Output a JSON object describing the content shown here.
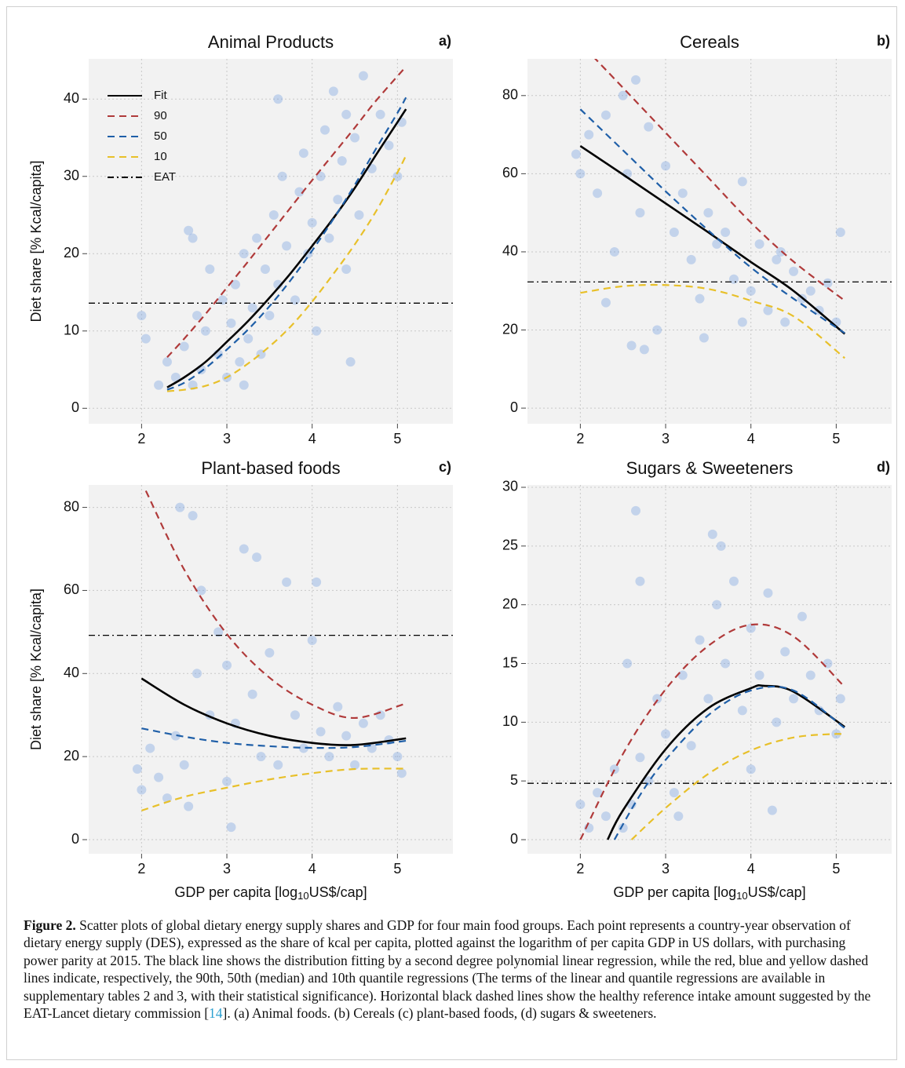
{
  "chart_data": [
    {
      "type": "scatter",
      "title": "Animal Products",
      "panel_label": "a)",
      "ylabel": "Diet share [% Kcal/capita]",
      "legend": "upper left",
      "grid": true,
      "xlim": [
        1.38,
        5.65
      ],
      "ylim": [
        -2,
        45.2
      ],
      "xticks": [
        2,
        3,
        4,
        5
      ],
      "yticks": [
        0,
        10,
        20,
        30,
        40
      ],
      "points": {
        "color": "#7ea6e0",
        "x": [
          2.0,
          2.05,
          2.2,
          2.3,
          2.4,
          2.5,
          2.55,
          2.6,
          2.65,
          2.7,
          2.75,
          2.8,
          2.9,
          2.95,
          3.0,
          3.05,
          3.1,
          3.15,
          3.2,
          3.25,
          3.3,
          3.35,
          3.4,
          3.45,
          3.5,
          3.55,
          3.6,
          3.65,
          3.7,
          3.8,
          3.85,
          3.9,
          3.95,
          4.0,
          4.05,
          4.1,
          4.15,
          4.2,
          4.25,
          4.3,
          4.35,
          4.4,
          4.45,
          4.5,
          4.55,
          4.6,
          4.7,
          4.8,
          4.9,
          5.0,
          5.05,
          4.4,
          3.6,
          2.6,
          3.2
        ],
        "y": [
          12,
          9,
          3,
          6,
          4,
          8,
          23,
          3,
          12,
          5,
          10,
          18,
          7,
          14,
          4,
          11,
          16,
          6,
          20,
          9,
          13,
          22,
          7,
          18,
          12,
          25,
          16,
          30,
          21,
          14,
          28,
          33,
          20,
          24,
          10,
          30,
          36,
          22,
          41,
          27,
          32,
          38,
          6,
          35,
          25,
          43,
          31,
          38,
          34,
          30,
          37,
          18,
          40,
          22,
          3
        ]
      },
      "series": [
        {
          "name": "Fit",
          "color": "#000000",
          "style": "solid",
          "x": [
            2.3,
            2.5,
            2.75,
            3.0,
            3.25,
            3.5,
            3.75,
            4.0,
            4.25,
            4.5,
            4.75,
            5.0,
            5.1
          ],
          "values": [
            2.7,
            4.0,
            6.0,
            8.6,
            11.3,
            14.3,
            17.5,
            21.0,
            24.6,
            28.5,
            32.8,
            37.0,
            38.7
          ]
        },
        {
          "name": "90",
          "color": "#b03a3a",
          "style": "dashed",
          "x": [
            2.3,
            2.5,
            2.75,
            3.0,
            3.25,
            3.5,
            3.75,
            4.0,
            4.25,
            4.5,
            4.75,
            5.1
          ],
          "values": [
            6.6,
            9.0,
            12.2,
            15.6,
            19.0,
            22.5,
            26.0,
            29.5,
            32.9,
            36.3,
            39.8,
            44.2
          ]
        },
        {
          "name": "50",
          "color": "#1f5fa8",
          "style": "dashed",
          "x": [
            2.3,
            2.5,
            2.75,
            3.0,
            3.25,
            3.5,
            3.75,
            4.0,
            4.25,
            4.5,
            4.75,
            5.0,
            5.1
          ],
          "values": [
            2.4,
            3.3,
            5.2,
            7.6,
            10.2,
            13.2,
            16.6,
            20.4,
            24.5,
            28.9,
            33.6,
            38.2,
            40.2
          ]
        },
        {
          "name": "10",
          "color": "#e8c02a",
          "style": "dashed",
          "x": [
            2.3,
            2.5,
            2.75,
            3.0,
            3.25,
            3.5,
            3.75,
            4.0,
            4.25,
            4.5,
            4.75,
            5.0,
            5.1
          ],
          "values": [
            2.2,
            2.4,
            2.9,
            4.0,
            5.8,
            8.0,
            10.6,
            13.8,
            17.4,
            21.2,
            25.5,
            30.5,
            32.7
          ]
        }
      ],
      "reference": {
        "name": "EAT",
        "value": 13.6,
        "color": "#000000",
        "style": "dashdot"
      }
    },
    {
      "type": "scatter",
      "title": "Cereals",
      "panel_label": "b)",
      "grid": true,
      "xlim": [
        1.38,
        5.65
      ],
      "ylim": [
        -4,
        89.4
      ],
      "xticks": [
        2,
        3,
        4,
        5
      ],
      "yticks": [
        0,
        20,
        40,
        60,
        80
      ],
      "points": {
        "color": "#7ea6e0",
        "x": [
          1.95,
          2.0,
          2.1,
          2.2,
          2.3,
          2.4,
          2.5,
          2.55,
          2.6,
          2.65,
          2.7,
          2.8,
          2.9,
          3.0,
          3.1,
          3.2,
          3.3,
          3.4,
          3.5,
          3.6,
          3.7,
          3.8,
          3.9,
          4.0,
          4.1,
          4.2,
          4.3,
          4.4,
          4.5,
          4.6,
          4.7,
          4.8,
          4.9,
          5.0,
          5.05,
          2.75,
          3.45,
          3.9,
          4.35,
          2.3
        ],
        "y": [
          65,
          60,
          70,
          55,
          75,
          40,
          80,
          60,
          16,
          84,
          50,
          72,
          20,
          62,
          45,
          55,
          38,
          28,
          50,
          42,
          45,
          33,
          58,
          30,
          42,
          25,
          38,
          22,
          35,
          28,
          30,
          25,
          32,
          22,
          45,
          15,
          18,
          22,
          40,
          27
        ]
      },
      "series": [
        {
          "color": "#000000",
          "style": "solid",
          "x": [
            2.0,
            2.5,
            3.0,
            3.5,
            4.0,
            4.5,
            5.1
          ],
          "values": [
            67.1,
            59.8,
            52.4,
            45.0,
            37.4,
            30.0,
            19.0
          ]
        },
        {
          "color": "#b03a3a",
          "style": "dashed",
          "x": [
            2.15,
            2.5,
            3.0,
            3.5,
            4.0,
            4.5,
            5.1
          ],
          "values": [
            90,
            82,
            70.5,
            59,
            47.5,
            37.5,
            27.5
          ]
        },
        {
          "color": "#1f5fa8",
          "style": "dashed",
          "x": [
            2.0,
            2.5,
            3.0,
            3.5,
            4.0,
            4.5,
            5.1
          ],
          "values": [
            76.5,
            66,
            55.5,
            45.5,
            36,
            28,
            19.2
          ]
        },
        {
          "color": "#e8c02a",
          "style": "dashed",
          "x": [
            2.0,
            2.5,
            3.0,
            3.5,
            4.0,
            4.5,
            5.1
          ],
          "values": [
            29.5,
            31.2,
            31.5,
            30.5,
            27.5,
            23.5,
            12.8
          ]
        }
      ],
      "reference": {
        "value": 32.3,
        "color": "#000000",
        "style": "dashdot"
      }
    },
    {
      "type": "scatter",
      "title": "Plant-based foods",
      "panel_label": "c)",
      "ylabel": "Diet share [% Kcal/capita]",
      "xlabel": [
        "GDP per capita [log",
        "10",
        "US$/cap]"
      ],
      "grid": true,
      "xlim": [
        1.38,
        5.65
      ],
      "ylim": [
        -3.4,
        85.4
      ],
      "xticks": [
        2,
        3,
        4,
        5
      ],
      "yticks": [
        0,
        20,
        40,
        60,
        80
      ],
      "points": {
        "color": "#7ea6e0",
        "x": [
          1.95,
          2.0,
          2.1,
          2.2,
          2.3,
          2.4,
          2.45,
          2.5,
          2.6,
          2.65,
          2.7,
          2.8,
          2.9,
          3.0,
          3.05,
          3.1,
          3.2,
          3.3,
          3.4,
          3.5,
          3.6,
          3.7,
          3.8,
          3.9,
          4.0,
          4.1,
          4.2,
          4.3,
          4.4,
          4.5,
          4.6,
          4.7,
          4.8,
          4.9,
          5.0,
          5.05,
          2.55,
          3.0,
          3.35,
          4.05
        ],
        "y": [
          17,
          12,
          22,
          15,
          10,
          25,
          80,
          18,
          78,
          40,
          60,
          30,
          50,
          14,
          3,
          28,
          70,
          35,
          20,
          45,
          18,
          62,
          30,
          22,
          48,
          26,
          20,
          32,
          25,
          18,
          28,
          22,
          30,
          24,
          20,
          16,
          8,
          42,
          68,
          62
        ]
      },
      "series": [
        {
          "color": "#000000",
          "style": "solid",
          "x": [
            2.0,
            2.5,
            3.0,
            3.5,
            4.0,
            4.5,
            5.1
          ],
          "values": [
            38.8,
            32.5,
            28,
            25,
            23.3,
            22.8,
            24.4
          ]
        },
        {
          "color": "#b03a3a",
          "style": "dashed",
          "x": [
            2.05,
            2.5,
            3.0,
            3.5,
            4.0,
            4.5,
            5.1
          ],
          "values": [
            84,
            65,
            49.5,
            39,
            32.5,
            29.3,
            32.8
          ]
        },
        {
          "color": "#1f5fa8",
          "style": "dashed",
          "x": [
            2.0,
            2.5,
            3.0,
            3.5,
            4.0,
            4.5,
            5.1
          ],
          "values": [
            26.8,
            24.8,
            23.3,
            22.5,
            22.1,
            22.3,
            23.8
          ]
        },
        {
          "color": "#e8c02a",
          "style": "dashed",
          "x": [
            2.0,
            2.5,
            3.0,
            3.5,
            4.0,
            4.5,
            5.1
          ],
          "values": [
            7,
            10.3,
            12.5,
            14.5,
            16,
            17,
            17.1
          ]
        }
      ],
      "reference": {
        "value": 49.2,
        "color": "#000000",
        "style": "dashdot"
      }
    },
    {
      "type": "scatter",
      "title": "Sugars & Sweeteners",
      "panel_label": "d)",
      "xlabel": [
        "GDP per capita [log",
        "10",
        "US$/cap]"
      ],
      "grid": true,
      "xlim": [
        1.38,
        5.65
      ],
      "ylim": [
        -1.2,
        30.2
      ],
      "xticks": [
        2,
        3,
        4,
        5
      ],
      "yticks": [
        0,
        5,
        10,
        15,
        20,
        25,
        30
      ],
      "points": {
        "color": "#7ea6e0",
        "x": [
          2.0,
          2.1,
          2.2,
          2.3,
          2.4,
          2.5,
          2.55,
          2.6,
          2.65,
          2.7,
          2.8,
          2.9,
          3.0,
          3.1,
          3.2,
          3.3,
          3.4,
          3.5,
          3.55,
          3.6,
          3.7,
          3.8,
          3.9,
          4.0,
          4.1,
          4.2,
          4.3,
          4.4,
          4.5,
          4.6,
          4.7,
          4.8,
          4.9,
          5.0,
          5.05,
          3.15,
          2.7,
          4.25,
          3.65,
          4.0
        ],
        "y": [
          3,
          1,
          4,
          2,
          6,
          1,
          15,
          3,
          28,
          7,
          5,
          12,
          9,
          4,
          14,
          8,
          17,
          12,
          26,
          20,
          15,
          22,
          11,
          18,
          14,
          21,
          10,
          16,
          12,
          19,
          14,
          11,
          15,
          9,
          12,
          2,
          22,
          2.5,
          25,
          6
        ]
      },
      "series": [
        {
          "color": "#000000",
          "style": "solid",
          "x": [
            2.32,
            2.5,
            3.0,
            3.5,
            4.0,
            4.15,
            4.5,
            5.1
          ],
          "values": [
            0,
            2.5,
            7.7,
            11.2,
            12.9,
            13.1,
            12.6,
            9.6
          ]
        },
        {
          "color": "#b03a3a",
          "style": "dashed",
          "x": [
            2.0,
            2.5,
            3.0,
            3.5,
            4.0,
            4.5,
            5.1
          ],
          "values": [
            0,
            7.3,
            12.8,
            16.5,
            18.3,
            17.3,
            13.0
          ]
        },
        {
          "color": "#1f5fa8",
          "style": "dashed",
          "x": [
            2.4,
            2.7,
            3.0,
            3.5,
            4.0,
            4.5,
            5.1
          ],
          "values": [
            0,
            3.8,
            6.8,
            10.6,
            12.7,
            12.7,
            9.5
          ]
        },
        {
          "color": "#e8c02a",
          "style": "dashed",
          "x": [
            2.6,
            3.0,
            3.5,
            4.0,
            4.5,
            5.0,
            5.1
          ],
          "values": [
            0,
            2.7,
            5.6,
            7.6,
            8.7,
            9.0,
            8.9
          ]
        }
      ],
      "reference": {
        "value": 4.8,
        "color": "#000000",
        "style": "dashdot"
      }
    }
  ],
  "caption": {
    "label": "Figure 2.",
    "text": " Scatter plots of global dietary energy supply shares and GDP for four main food groups. Each point represents a country-year observation of dietary energy supply (DES), expressed as the share of kcal per capita, plotted against the logarithm of per capita GDP in US dollars, with purchasing power parity at 2015. The black line shows the distribution fitting by a second degree polynomial linear regression, while the red, blue and yellow dashed lines indicate, respectively, the 90th, 50th (median) and 10th quantile regressions (The terms of the linear and quantile regressions are available in supplementary tables 2 and 3, with their statistical significance). Horizontal black dashed lines show the healthy reference intake amount suggested by the EAT-Lancet dietary commission [",
    "ref": "14",
    "text_end": "]. (a) Animal foods. (b) Cereals (c) plant-based foods, (d) sugars & sweeteners."
  }
}
